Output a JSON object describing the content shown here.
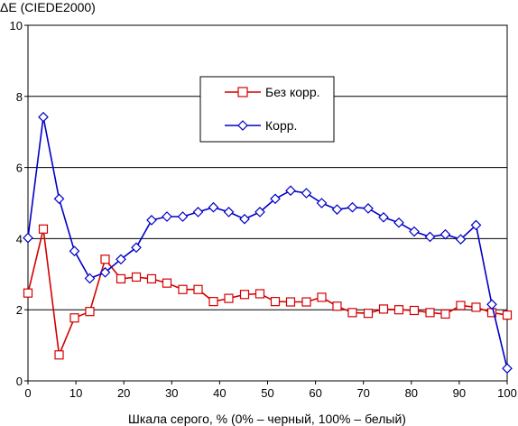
{
  "chart_data": {
    "type": "line",
    "ylabel": "ΔE (CIEDE2000)",
    "xlabel": "Шкала серого, % (0% – черный, 100% – белый)",
    "xlim": [
      0,
      100
    ],
    "ylim": [
      0,
      10
    ],
    "xticks": [
      "0",
      "10",
      "20",
      "30",
      "40",
      "50",
      "60",
      "70",
      "80",
      "90",
      "100"
    ],
    "yticks": [
      "0",
      "2",
      "4",
      "6",
      "8",
      "10"
    ],
    "grid": "horizontal",
    "legend_position": "top-center",
    "series": [
      {
        "name": "Без корр.",
        "color": "#d40000",
        "marker": "square",
        "x": [
          0,
          3.2,
          6.5,
          9.7,
          12.9,
          16.1,
          19.4,
          22.6,
          25.8,
          29.0,
          32.3,
          35.5,
          38.7,
          41.9,
          45.2,
          48.4,
          51.6,
          54.8,
          58.1,
          61.3,
          64.5,
          67.7,
          71.0,
          74.2,
          77.4,
          80.6,
          83.9,
          87.1,
          90.3,
          93.5,
          96.8,
          100
        ],
        "values": [
          2.47,
          4.27,
          0.73,
          1.77,
          1.95,
          3.42,
          2.87,
          2.92,
          2.87,
          2.75,
          2.57,
          2.57,
          2.23,
          2.32,
          2.43,
          2.45,
          2.23,
          2.22,
          2.22,
          2.35,
          2.1,
          1.92,
          1.9,
          2.02,
          2.0,
          1.98,
          1.92,
          1.88,
          2.12,
          2.07,
          1.92,
          1.85
        ]
      },
      {
        "name": "Корр.",
        "color": "#0000c8",
        "marker": "diamond",
        "x": [
          0,
          3.2,
          6.5,
          9.7,
          12.9,
          16.1,
          19.4,
          22.6,
          25.8,
          29.0,
          32.3,
          35.5,
          38.7,
          41.9,
          45.2,
          48.4,
          51.6,
          54.8,
          58.1,
          61.3,
          64.5,
          67.7,
          71.0,
          74.2,
          77.4,
          80.6,
          83.9,
          87.1,
          90.3,
          93.5,
          96.8,
          100
        ],
        "values": [
          4.02,
          7.42,
          5.12,
          3.65,
          2.88,
          3.05,
          3.42,
          3.75,
          4.52,
          4.62,
          4.62,
          4.75,
          4.88,
          4.75,
          4.55,
          4.75,
          5.12,
          5.35,
          5.28,
          5.0,
          4.82,
          4.88,
          4.85,
          4.6,
          4.45,
          4.2,
          4.05,
          4.12,
          3.98,
          4.38,
          2.15,
          0.35
        ]
      }
    ]
  }
}
